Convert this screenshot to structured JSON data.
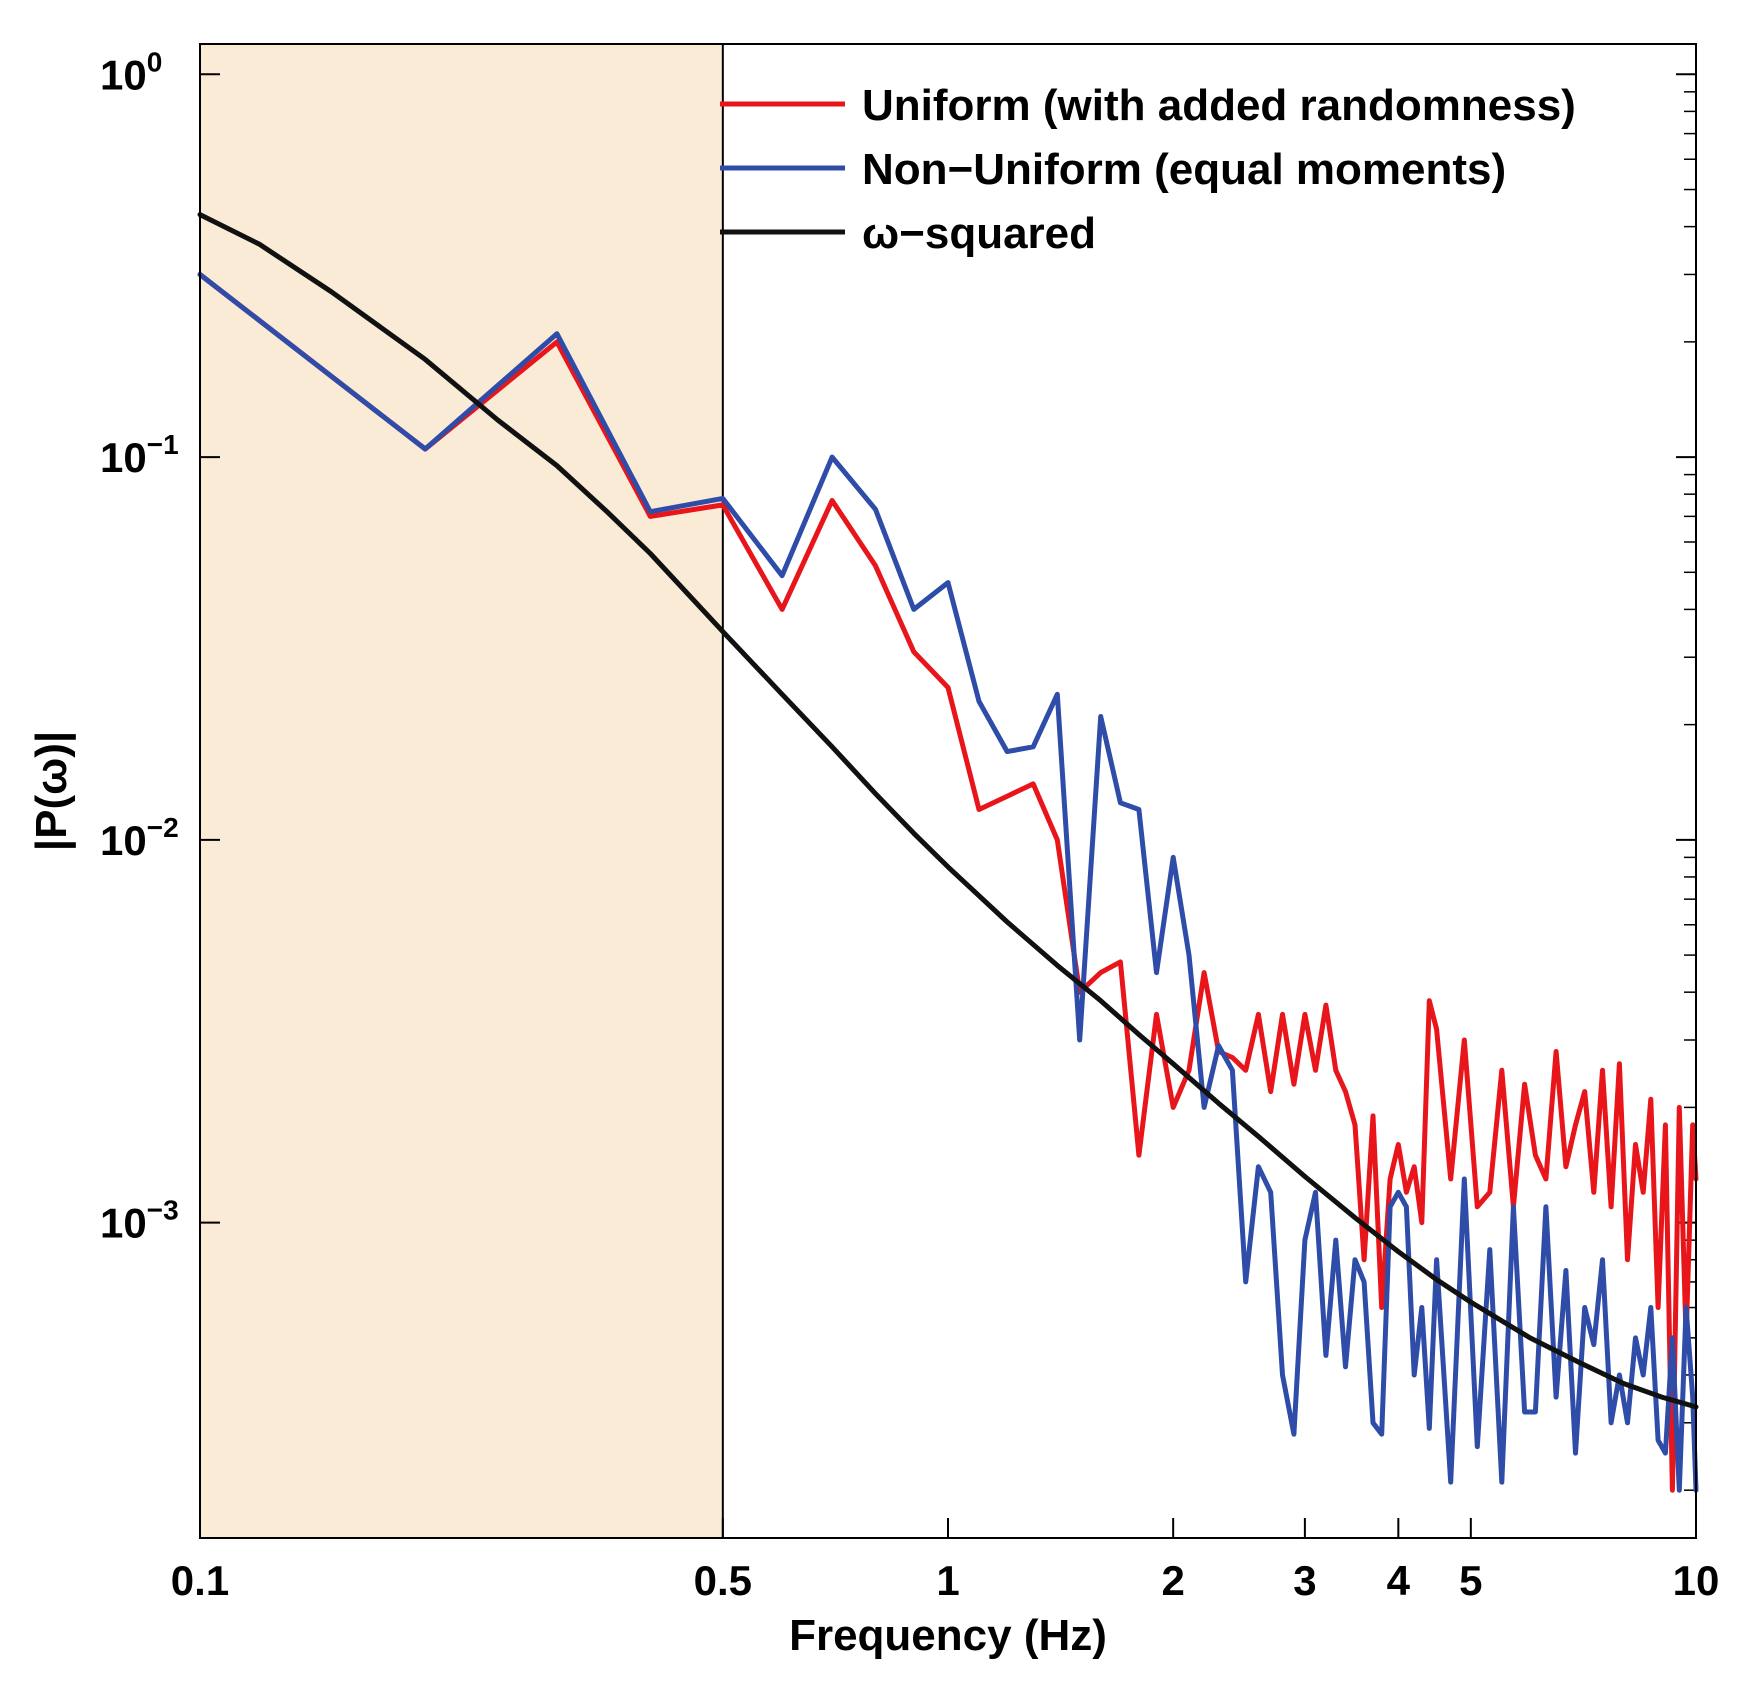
{
  "chart_data": {
    "type": "line",
    "xscale": "log",
    "yscale": "log",
    "title": "",
    "xlabel": "Frequency (Hz)",
    "ylabel": "|P(ω)|",
    "xlim": [
      0.1,
      10
    ],
    "ylim": [
      0.00015,
      1.2
    ],
    "x_ticks": [
      0.1,
      0.5,
      1,
      2,
      3,
      4,
      5,
      10
    ],
    "x_tick_labels": [
      "0.1",
      "0.5",
      "1",
      "2",
      "3",
      "4",
      "5",
      "10"
    ],
    "y_ticks": [
      {
        "value": 1,
        "base": "10",
        "exp": "0"
      },
      {
        "value": 0.1,
        "base": "10",
        "exp": "−1"
      },
      {
        "value": 0.01,
        "base": "10",
        "exp": "−2"
      },
      {
        "value": 0.001,
        "base": "10",
        "exp": "−3"
      }
    ],
    "shaded_region": {
      "x_start": 0.1,
      "x_end": 0.5,
      "color": "#FAEBD7"
    },
    "legend_position": "top-right",
    "series": [
      {
        "name": "Uniform (with added randomness)",
        "color": "#E8151B",
        "x": [
          0.1,
          0.2,
          0.3,
          0.4,
          0.5,
          0.6,
          0.7,
          0.8,
          0.9,
          1.0,
          1.1,
          1.2,
          1.3,
          1.4,
          1.5,
          1.6,
          1.7,
          1.8,
          1.9,
          2.0,
          2.1,
          2.2,
          2.3,
          2.4,
          2.5,
          2.6,
          2.7,
          2.8,
          2.9,
          3.0,
          3.1,
          3.2,
          3.3,
          3.4,
          3.5,
          3.6,
          3.7,
          3.8,
          3.9,
          4.0,
          4.1,
          4.2,
          4.3,
          4.4,
          4.5,
          4.7,
          4.9,
          5.1,
          5.3,
          5.5,
          5.7,
          5.9,
          6.1,
          6.3,
          6.5,
          6.7,
          6.9,
          7.1,
          7.3,
          7.5,
          7.7,
          7.9,
          8.1,
          8.3,
          8.5,
          8.7,
          8.9,
          9.1,
          9.3,
          9.5,
          9.7,
          9.9,
          10.0
        ],
        "y": [
          0.3,
          0.105,
          0.2,
          0.07,
          0.075,
          0.04,
          0.077,
          0.052,
          0.031,
          0.025,
          0.012,
          0.013,
          0.014,
          0.01,
          0.004,
          0.0045,
          0.0048,
          0.0015,
          0.0035,
          0.002,
          0.0025,
          0.0045,
          0.0028,
          0.0027,
          0.0025,
          0.0035,
          0.0022,
          0.0035,
          0.0023,
          0.0035,
          0.0025,
          0.0037,
          0.0025,
          0.0022,
          0.0018,
          0.0008,
          0.0019,
          0.0006,
          0.0013,
          0.0016,
          0.0012,
          0.0014,
          0.001,
          0.0038,
          0.0032,
          0.0013,
          0.003,
          0.0011,
          0.0012,
          0.0025,
          0.0011,
          0.0023,
          0.0015,
          0.0013,
          0.0028,
          0.0014,
          0.0018,
          0.0022,
          0.0012,
          0.0025,
          0.0011,
          0.0026,
          0.0008,
          0.0016,
          0.0012,
          0.0021,
          0.0006,
          0.0018,
          0.0002,
          0.002,
          0.0005,
          0.0018,
          0.0013
        ]
      },
      {
        "name": "Non−Uniform (equal moments)",
        "color": "#2F4DA8",
        "x": [
          0.1,
          0.2,
          0.3,
          0.4,
          0.5,
          0.6,
          0.7,
          0.8,
          0.9,
          1.0,
          1.1,
          1.2,
          1.3,
          1.4,
          1.5,
          1.6,
          1.7,
          1.8,
          1.9,
          2.0,
          2.1,
          2.2,
          2.3,
          2.4,
          2.5,
          2.6,
          2.7,
          2.8,
          2.9,
          3.0,
          3.1,
          3.2,
          3.3,
          3.4,
          3.5,
          3.6,
          3.7,
          3.8,
          3.9,
          4.0,
          4.1,
          4.2,
          4.3,
          4.4,
          4.5,
          4.7,
          4.9,
          5.1,
          5.3,
          5.5,
          5.7,
          5.9,
          6.1,
          6.3,
          6.5,
          6.7,
          6.9,
          7.1,
          7.3,
          7.5,
          7.7,
          7.9,
          8.1,
          8.3,
          8.5,
          8.7,
          8.9,
          9.1,
          9.3,
          9.5,
          9.7,
          9.9,
          10.0
        ],
        "y": [
          0.3,
          0.105,
          0.21,
          0.072,
          0.078,
          0.049,
          0.1,
          0.073,
          0.04,
          0.047,
          0.023,
          0.017,
          0.0175,
          0.024,
          0.003,
          0.021,
          0.0125,
          0.012,
          0.0045,
          0.009,
          0.005,
          0.002,
          0.0029,
          0.0025,
          0.0007,
          0.0014,
          0.0012,
          0.0004,
          0.00028,
          0.0009,
          0.0012,
          0.00045,
          0.0009,
          0.00042,
          0.0008,
          0.0007,
          0.0003,
          0.00028,
          0.0011,
          0.0012,
          0.0011,
          0.0004,
          0.0006,
          0.00029,
          0.0008,
          0.00021,
          0.0013,
          0.00026,
          0.00085,
          0.00021,
          0.0011,
          0.00032,
          0.00032,
          0.0011,
          0.00035,
          0.00075,
          0.00025,
          0.0006,
          0.00048,
          0.0008,
          0.0003,
          0.0004,
          0.0003,
          0.0005,
          0.0004,
          0.0006,
          0.00027,
          0.00025,
          0.0005,
          0.0002,
          0.0006,
          0.00035,
          0.0002
        ]
      },
      {
        "name": "ω−squared",
        "color": "#111111",
        "x": [
          0.1,
          0.12,
          0.15,
          0.2,
          0.25,
          0.3,
          0.35,
          0.4,
          0.5,
          0.6,
          0.7,
          0.8,
          0.9,
          1.0,
          1.2,
          1.4,
          1.6,
          1.8,
          2.0,
          2.3,
          2.6,
          3.0,
          3.5,
          4.0,
          4.5,
          5.0,
          6.0,
          7.0,
          8.0,
          9.0,
          10.0
        ],
        "y": [
          0.43,
          0.36,
          0.27,
          0.18,
          0.125,
          0.095,
          0.072,
          0.056,
          0.035,
          0.024,
          0.0175,
          0.0132,
          0.0104,
          0.0085,
          0.0061,
          0.0047,
          0.0038,
          0.0031,
          0.0026,
          0.00205,
          0.00168,
          0.00132,
          0.00103,
          0.00084,
          0.00071,
          0.00062,
          0.0005,
          0.00043,
          0.00038,
          0.00035,
          0.00033
        ]
      }
    ]
  }
}
